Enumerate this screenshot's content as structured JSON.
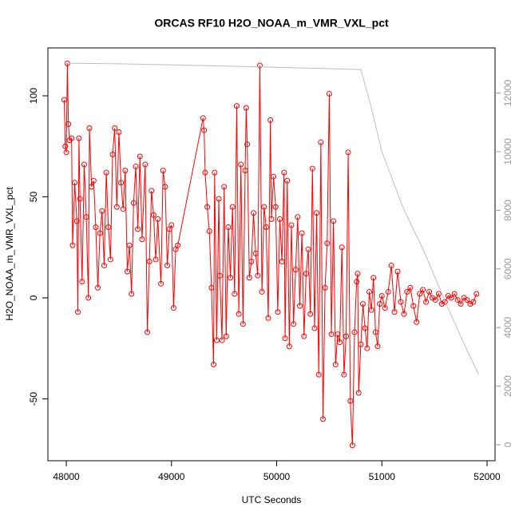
{
  "chart_data": {
    "type": "line",
    "title": "ORCAS RF10 H2O_NOAA_m_VMR_VXL_pct",
    "x_label": "UTC Seconds",
    "y_label": "H2O_NOAA_m_VMR_VXL_pct",
    "xlim": [
      47825,
      52076
    ],
    "ylim": [
      -80.6,
      123.7
    ],
    "y2lim": [
      -545,
      13540
    ],
    "xticks": [
      48000,
      49000,
      50000,
      51000,
      52000
    ],
    "yticks": [
      -50,
      0,
      50,
      100
    ],
    "y2ticks": [
      0,
      2000,
      4000,
      6000,
      8000,
      10000,
      12000
    ],
    "series": [
      {
        "color": "#ff0000",
        "marker": "circle",
        "x": [
          47980,
          47990,
          48000,
          48010,
          48020,
          48030,
          48050,
          48060,
          48080,
          48100,
          48110,
          48120,
          48130,
          48150,
          48170,
          48190,
          48210,
          48220,
          48240,
          48260,
          48280,
          48300,
          48320,
          48340,
          48360,
          48380,
          48400,
          48420,
          48440,
          48460,
          48480,
          48500,
          48520,
          48540,
          48560,
          48580,
          48600,
          48620,
          48640,
          48660,
          48680,
          48700,
          48720,
          48750,
          48770,
          48790,
          48810,
          48830,
          48850,
          48870,
          48900,
          48920,
          48940,
          48960,
          48980,
          49000,
          49020,
          49040,
          49060,
          49300,
          49310,
          49320,
          49340,
          49360,
          49380,
          49400,
          49410,
          49430,
          49450,
          49460,
          49480,
          49500,
          49520,
          49540,
          49560,
          49580,
          49600,
          49620,
          49640,
          49660,
          49680,
          49700,
          49710,
          49720,
          49740,
          49760,
          49780,
          49800,
          49820,
          49840,
          49860,
          49880,
          49900,
          49920,
          49940,
          49950,
          49970,
          49990,
          50010,
          50030,
          50050,
          50070,
          50080,
          50100,
          50120,
          50140,
          50160,
          50180,
          50200,
          50220,
          50240,
          50260,
          50280,
          50300,
          50320,
          50340,
          50360,
          50380,
          50400,
          50420,
          50440,
          50460,
          50480,
          50500,
          50520,
          50540,
          50560,
          50580,
          50600,
          50620,
          50640,
          50660,
          50680,
          50700,
          50720,
          50740,
          50760,
          50770,
          50780,
          50800,
          50820,
          50840,
          50860,
          50880,
          50900,
          50920,
          50940,
          50960,
          50980,
          51000,
          51030,
          51060,
          51090,
          51120,
          51150,
          51180,
          51210,
          51240,
          51270,
          51300,
          51330,
          51360,
          51390,
          51420,
          51450,
          51480,
          51510,
          51540,
          51570,
          51600,
          51630,
          51660,
          51690,
          51720,
          51750,
          51780,
          51810,
          51840,
          51870,
          51900
        ],
        "values": [
          98,
          75,
          72,
          116,
          86,
          78,
          79,
          26,
          57,
          38,
          -7,
          79,
          49,
          8,
          66,
          40,
          0,
          84,
          55,
          58,
          35,
          5,
          32,
          43,
          16,
          62,
          35,
          19,
          71,
          84,
          45,
          82,
          57,
          44,
          63,
          13,
          26,
          2,
          47,
          65,
          34,
          70,
          29,
          66,
          -17,
          18,
          53,
          41,
          19,
          39,
          7,
          63,
          55,
          16,
          34,
          36,
          -5,
          24,
          26,
          89,
          83,
          62,
          45,
          33,
          5,
          -33,
          62,
          -21,
          49,
          11,
          -21,
          55,
          -19,
          35,
          10,
          45,
          2,
          95,
          -8,
          66,
          -13,
          63,
          94,
          76,
          10,
          18,
          42,
          22,
          11,
          115,
          3,
          45,
          35,
          -10,
          88,
          39,
          60,
          45,
          -7,
          39,
          18,
          62,
          -20,
          58,
          -24,
          36,
          -13,
          14,
          40,
          -4,
          32,
          -19,
          12,
          24,
          -8,
          64,
          -15,
          42,
          -38,
          77,
          -60,
          5,
          27,
          101,
          -18,
          38,
          -33,
          -18,
          -22,
          25,
          -38,
          -19,
          72,
          -51,
          -73,
          -17,
          8,
          12,
          -47,
          -23,
          -3,
          -15,
          -25,
          3,
          -6,
          10,
          -17,
          -24,
          -3,
          1,
          -5,
          3,
          16,
          -7,
          13,
          -2,
          -8,
          3,
          5,
          -4,
          -12,
          2,
          4,
          -2,
          3,
          0,
          -1,
          2,
          -3,
          -2,
          1,
          0,
          2,
          -1,
          -3,
          0,
          -1,
          -3,
          -2,
          2
        ]
      },
      {
        "color": "#bebebe",
        "axis": "y2",
        "x": [
          47980,
          48500,
          49000,
          49500,
          50000,
          50500,
          50700,
          50800,
          50900,
          51000,
          51200,
          51400,
          51600,
          51800,
          51920
        ],
        "values": [
          13020,
          13000,
          12960,
          12920,
          12880,
          12830,
          12810,
          12800,
          11500,
          10000,
          8100,
          6600,
          4900,
          3300,
          2400
        ]
      }
    ]
  }
}
